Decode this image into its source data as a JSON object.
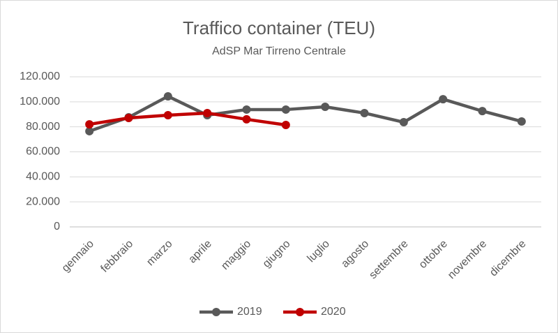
{
  "chart_data": {
    "type": "line",
    "title": "Traffico container (TEU)",
    "subtitle": "AdSP Mar Tirreno Centrale",
    "categories": [
      "gennaio",
      "febbraio",
      "marzo",
      "aprile",
      "maggio",
      "giugno",
      "luglio",
      "agosto",
      "settembre",
      "ottobre",
      "novembre",
      "dicembre"
    ],
    "series": [
      {
        "name": "2019",
        "color": "#595959",
        "values": [
          76500,
          87600,
          104400,
          89300,
          93800,
          93800,
          96000,
          91000,
          83700,
          102100,
          92600,
          84300
        ]
      },
      {
        "name": "2020",
        "color": "#c00000",
        "values": [
          82000,
          87100,
          89300,
          91000,
          86000,
          81500,
          null,
          null,
          null,
          null,
          null,
          null
        ]
      }
    ],
    "ylim": [
      0,
      120000
    ],
    "yticks": [
      0,
      {
        "value": 20000,
        "label": "20.000"
      },
      {
        "value": 40000,
        "label": "40.000"
      },
      {
        "value": 60000,
        "label": "60.000"
      },
      {
        "value": 80000,
        "label": "80.000"
      },
      {
        "value": 100000,
        "label": "100.000"
      },
      {
        "value": 120000,
        "label": "120.000"
      }
    ],
    "grid": true,
    "legend": "bottom"
  }
}
